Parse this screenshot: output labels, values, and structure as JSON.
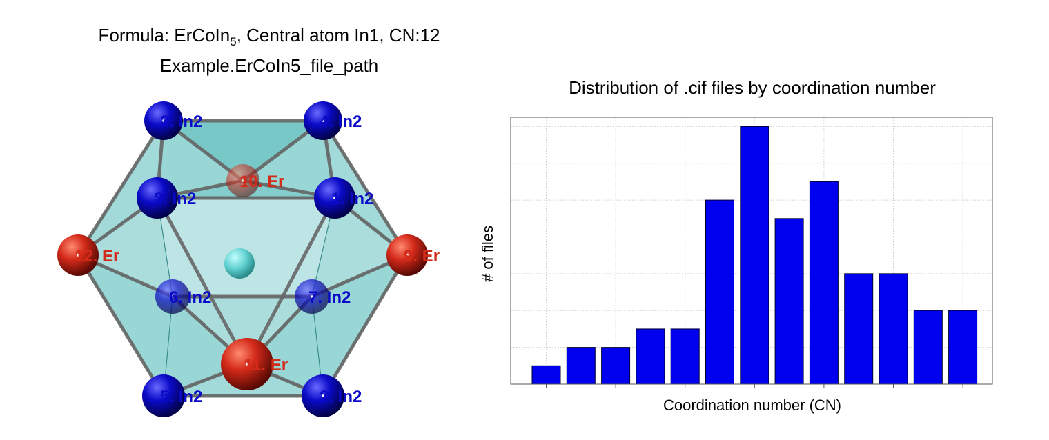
{
  "structure": {
    "formula_prefix": "Formula: ErCoIn",
    "formula_subscript": "5",
    "formula_suffix": ", Central atom In1, CN:12",
    "file_path": "Example.ErCoIn5_file_path",
    "colors": {
      "in_atom": "#0a0ac8",
      "er_atom": "#d42a1a",
      "central_atom": "#5fcfcf",
      "polyhedron_fill": "#46b4b4",
      "bond": "#666666"
    },
    "atoms": [
      {
        "label": "3. In2",
        "type": "In"
      },
      {
        "label": "4. In2",
        "type": "In"
      },
      {
        "label": "10. Er",
        "type": "Er"
      },
      {
        "label": "8. In2",
        "type": "In"
      },
      {
        "label": "1. In2",
        "type": "In"
      },
      {
        "label": "12. Er",
        "type": "Er"
      },
      {
        "label": "9. Er",
        "type": "Er"
      },
      {
        "label": "6. In2",
        "type": "In"
      },
      {
        "label": "7. In2",
        "type": "In"
      },
      {
        "label": "11. Er",
        "type": "Er"
      },
      {
        "label": "5. In2",
        "type": "In"
      },
      {
        "label": "2. In2",
        "type": "In"
      }
    ]
  },
  "chart_data": {
    "type": "bar",
    "title": "Distribution of .cif files by coordination number",
    "xlabel": "Coordination number (CN)",
    "ylabel": "# of files",
    "values": [
      1,
      2,
      2,
      3,
      3,
      10,
      14,
      9,
      11,
      6,
      6,
      4,
      4
    ],
    "ylim": [
      0,
      14.5
    ],
    "bar_color": "#0000ee",
    "grid": true,
    "tick_labels_shown": false
  }
}
